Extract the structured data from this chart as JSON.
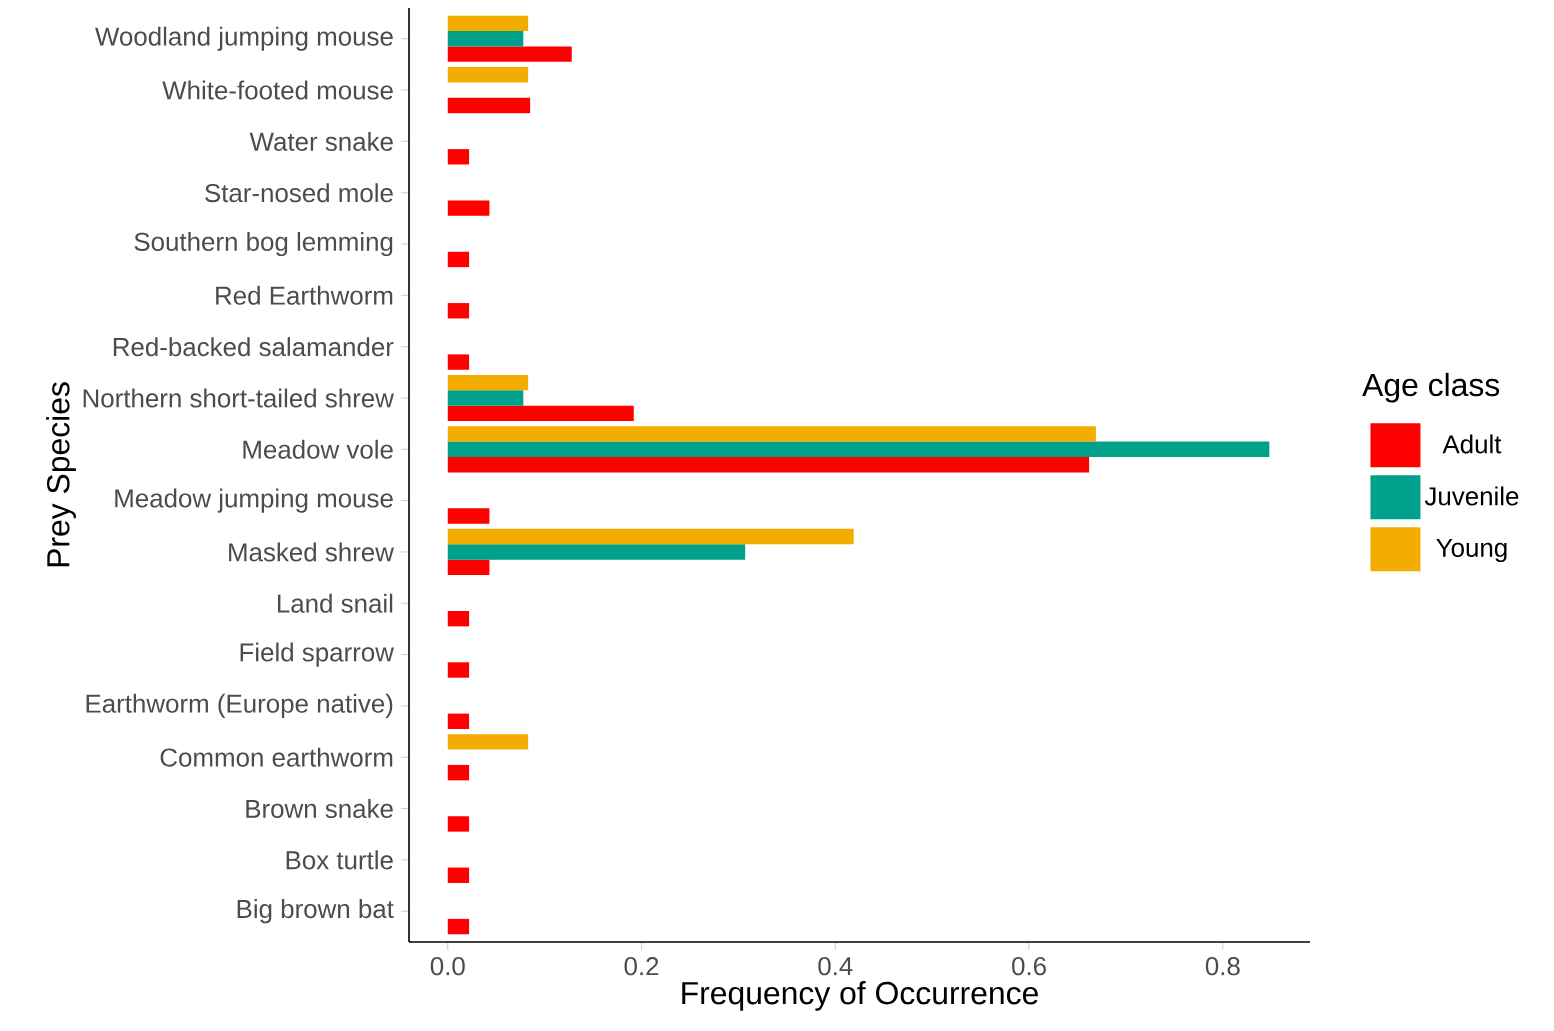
{
  "chart_data": {
    "type": "bar",
    "orientation": "horizontal",
    "xlabel": "Frequency of Occurrence",
    "ylabel": "Prey Species",
    "legend_title": "Age class",
    "legend": "right",
    "categories": [
      "Woodland jumping mouse",
      "White-footed mouse",
      "Water snake",
      "Star-nosed mole",
      "Southern bog lemming",
      "Red Earthworm",
      "Red-backed salamander",
      "Northern short-tailed shrew",
      "Meadow vole",
      "Meadow jumping mouse",
      "Masked shrew",
      "Land snail",
      "Field sparrow",
      "Earthworm (Europe native)",
      "Common earthworm",
      "Brown snake",
      "Box turtle",
      "Big brown bat"
    ],
    "series": [
      {
        "name": "Adult",
        "color": "#ff0000",
        "values": [
          0.128,
          0.085,
          0.022,
          0.043,
          0.022,
          0.022,
          0.022,
          0.192,
          0.662,
          0.043,
          0.043,
          0.022,
          0.022,
          0.022,
          0.022,
          0.022,
          0.022,
          0.022
        ]
      },
      {
        "name": "Juvenile",
        "color": "#00a08a",
        "values": [
          0.078,
          null,
          null,
          null,
          null,
          null,
          null,
          0.078,
          0.848,
          null,
          0.307,
          null,
          null,
          null,
          null,
          null,
          null,
          null
        ]
      },
      {
        "name": "Young",
        "color": "#f2ad00",
        "values": [
          0.083,
          0.083,
          null,
          null,
          null,
          null,
          null,
          0.083,
          0.669,
          null,
          0.419,
          null,
          null,
          null,
          0.083,
          null,
          null,
          null
        ]
      }
    ],
    "xlim": [
      -0.04,
      0.89
    ],
    "xticks": [
      {
        "value": 0,
        "label": "0.0"
      },
      0.2,
      0.4,
      0.6,
      0.8
    ]
  }
}
